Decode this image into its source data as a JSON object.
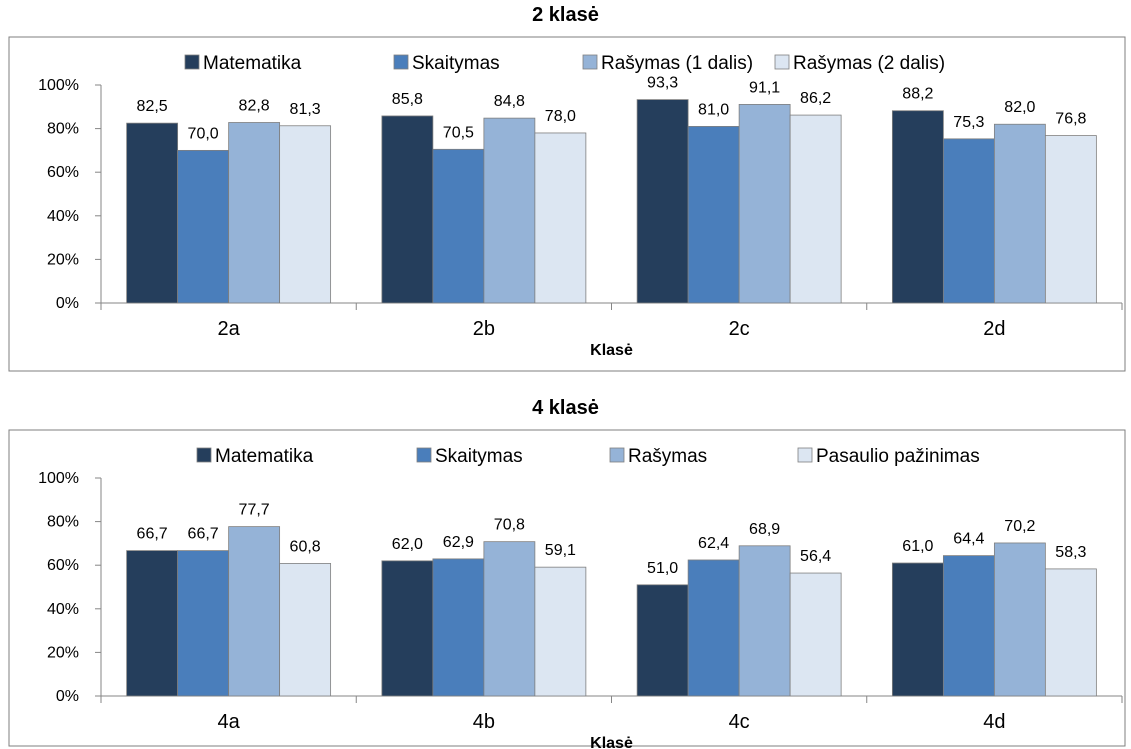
{
  "chart_data": [
    {
      "type": "bar",
      "title": "2 klasė",
      "xlabel": "Klasė",
      "ylabel": "",
      "categories": [
        "2a",
        "2b",
        "2c",
        "2d"
      ],
      "series": [
        {
          "name": "Matematika",
          "values": [
            82.5,
            85.8,
            93.3,
            88.2
          ],
          "labels": [
            "82,5",
            "85,8",
            "93,3",
            "88,2"
          ],
          "color": "#253E5C"
        },
        {
          "name": "Skaitymas",
          "values": [
            70.0,
            70.5,
            81.0,
            75.3
          ],
          "labels": [
            "70,0",
            "70,5",
            "81,0",
            "75,3"
          ],
          "color": "#4A7EBB"
        },
        {
          "name": "Rašymas (1 dalis)",
          "values": [
            82.8,
            84.8,
            91.1,
            82.0
          ],
          "labels": [
            "82,8",
            "84,8",
            "91,1",
            "82,0"
          ],
          "color": "#95B3D7"
        },
        {
          "name": "Rašymas (2 dalis)",
          "values": [
            81.3,
            78.0,
            86.2,
            76.8
          ],
          "labels": [
            "81,3",
            "78,0",
            "86,2",
            "76,8"
          ],
          "color": "#DCE6F2"
        }
      ],
      "ylim": [
        0,
        100
      ],
      "yticks": [
        "0%",
        "20%",
        "40%",
        "60%",
        "80%",
        "100%"
      ],
      "legend": "top",
      "grid": false
    },
    {
      "type": "bar",
      "title": "4 klasė",
      "xlabel": "Klasė",
      "ylabel": "",
      "categories": [
        "4a",
        "4b",
        "4c",
        "4d"
      ],
      "series": [
        {
          "name": "Matematika",
          "values": [
            66.7,
            62.0,
            51.0,
            61.0
          ],
          "labels": [
            "66,7",
            "62,0",
            "51,0",
            "61,0"
          ],
          "color": "#253E5C"
        },
        {
          "name": "Skaitymas",
          "values": [
            66.7,
            62.9,
            62.4,
            64.4
          ],
          "labels": [
            "66,7",
            "62,9",
            "62,4",
            "64,4"
          ],
          "color": "#4A7EBB"
        },
        {
          "name": "Rašymas",
          "values": [
            77.7,
            70.8,
            68.9,
            70.2
          ],
          "labels": [
            "77,7",
            "70,8",
            "68,9",
            "70,2"
          ],
          "color": "#95B3D7"
        },
        {
          "name": "Pasaulio pažinimas",
          "values": [
            60.8,
            59.1,
            56.4,
            58.3
          ],
          "labels": [
            "60,8",
            "59,1",
            "56,4",
            "58,3"
          ],
          "color": "#DCE6F2"
        }
      ],
      "ylim": [
        0,
        100
      ],
      "yticks": [
        "0%",
        "20%",
        "40%",
        "60%",
        "80%",
        "100%"
      ],
      "legend": "top",
      "grid": false
    }
  ]
}
